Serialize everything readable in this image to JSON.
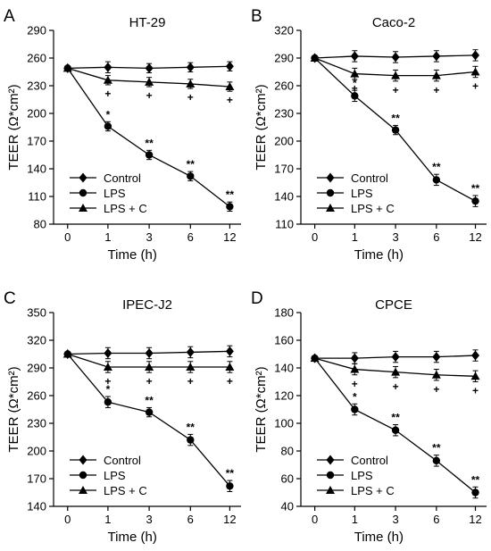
{
  "chart_data": [
    {
      "panel": "A",
      "type": "line",
      "title": "HT-29",
      "xlabel": "Time (h)",
      "ylabel": "TEER (Ω*cm²)",
      "x": [
        "0",
        "1",
        "3",
        "6",
        "12"
      ],
      "yticks": [
        "80",
        "110",
        "140",
        "170",
        "200",
        "230",
        "260",
        "290"
      ],
      "ylim": [
        80,
        290
      ],
      "series": [
        {
          "name": "Control",
          "marker": "diamond",
          "values": [
            249,
            250,
            249,
            250,
            251
          ],
          "err": [
            0,
            6,
            5,
            5,
            5
          ]
        },
        {
          "name": "LPS",
          "marker": "circle",
          "values": [
            249,
            186,
            155,
            132,
            99
          ],
          "err": [
            0,
            5,
            5,
            5,
            5
          ],
          "annotations": [
            "",
            "*",
            "**",
            "**",
            "**"
          ]
        },
        {
          "name": "LPS + C",
          "marker": "triangle",
          "values": [
            249,
            236,
            234,
            232,
            229
          ],
          "err": [
            0,
            5,
            5,
            5,
            5
          ],
          "annotations": [
            "",
            "+",
            "+",
            "+",
            "+"
          ]
        }
      ]
    },
    {
      "panel": "B",
      "type": "line",
      "title": "Caco-2",
      "xlabel": "Time (h)",
      "ylabel": "TEER (Ω*cm²)",
      "x": [
        "0",
        "1",
        "3",
        "6",
        "12"
      ],
      "yticks": [
        "110",
        "140",
        "170",
        "200",
        "230",
        "260",
        "290",
        "320"
      ],
      "ylim": [
        110,
        320
      ],
      "series": [
        {
          "name": "Control",
          "marker": "diamond",
          "values": [
            290,
            292,
            291,
            292,
            293
          ],
          "err": [
            0,
            6,
            6,
            6,
            6
          ]
        },
        {
          "name": "LPS",
          "marker": "circle",
          "values": [
            290,
            249,
            212,
            158,
            135
          ],
          "err": [
            0,
            6,
            5,
            6,
            6
          ],
          "annotations": [
            "",
            "*",
            "**",
            "**",
            "**"
          ]
        },
        {
          "name": "LPS + C",
          "marker": "triangle",
          "values": [
            290,
            273,
            271,
            271,
            275
          ],
          "err": [
            0,
            6,
            6,
            6,
            6
          ],
          "annotations": [
            "",
            "+",
            "+",
            "+",
            "+"
          ]
        }
      ]
    },
    {
      "panel": "C",
      "type": "line",
      "title": "IPEC-J2",
      "xlabel": "Time (h)",
      "ylabel": "TEER (Ω*cm²)",
      "x": [
        "0",
        "1",
        "3",
        "6",
        "12"
      ],
      "yticks": [
        "140",
        "170",
        "200",
        "230",
        "260",
        "290",
        "320",
        "350"
      ],
      "ylim": [
        140,
        350
      ],
      "series": [
        {
          "name": "Control",
          "marker": "diamond",
          "values": [
            305,
            306,
            306,
            307,
            308
          ],
          "err": [
            0,
            6,
            6,
            6,
            6
          ]
        },
        {
          "name": "LPS",
          "marker": "circle",
          "values": [
            305,
            253,
            242,
            212,
            162
          ],
          "err": [
            0,
            6,
            5,
            6,
            6
          ],
          "annotations": [
            "",
            "*",
            "**",
            "**",
            "**"
          ]
        },
        {
          "name": "LPS + C",
          "marker": "triangle",
          "values": [
            305,
            291,
            291,
            291,
            291
          ],
          "err": [
            0,
            6,
            6,
            6,
            6
          ],
          "annotations": [
            "",
            "+",
            "+",
            "+",
            "+"
          ]
        }
      ]
    },
    {
      "panel": "D",
      "type": "line",
      "title": "CPCE",
      "xlabel": "Time (h)",
      "ylabel": "TEER (Ω*cm²)",
      "x": [
        "0",
        "1",
        "3",
        "6",
        "12"
      ],
      "yticks": [
        "40",
        "60",
        "80",
        "100",
        "120",
        "140",
        "160",
        "180"
      ],
      "ylim": [
        40,
        180
      ],
      "series": [
        {
          "name": "Control",
          "marker": "diamond",
          "values": [
            147,
            147,
            148,
            148,
            149
          ],
          "err": [
            0,
            4,
            4,
            4,
            4
          ]
        },
        {
          "name": "LPS",
          "marker": "circle",
          "values": [
            147,
            110,
            95,
            73,
            50
          ],
          "err": [
            0,
            4,
            4,
            4,
            4
          ],
          "annotations": [
            "",
            "*",
            "**",
            "**",
            "**"
          ]
        },
        {
          "name": "LPS + C",
          "marker": "triangle",
          "values": [
            147,
            139,
            137,
            135,
            134
          ],
          "err": [
            0,
            4,
            4,
            4,
            4
          ],
          "annotations": [
            "",
            "+",
            "+",
            "+",
            "+"
          ]
        }
      ]
    }
  ]
}
